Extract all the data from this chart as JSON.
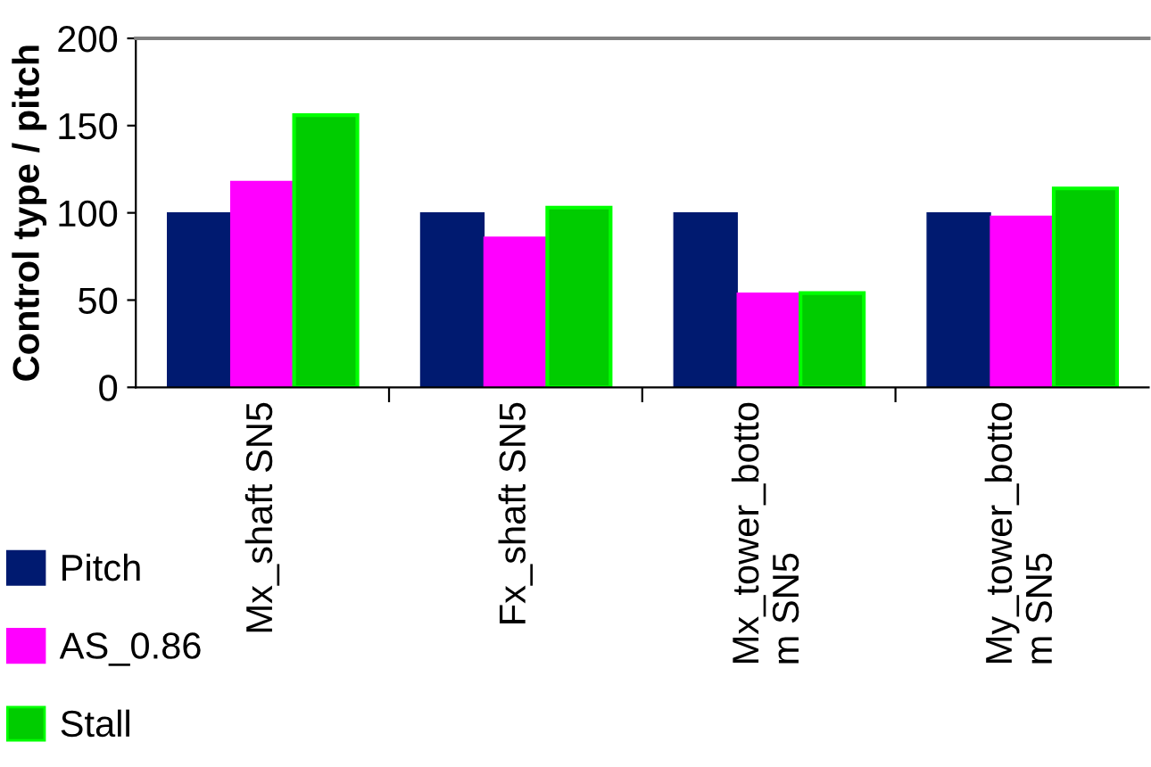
{
  "chart_data": {
    "type": "bar",
    "ylabel": "Control type / pitch",
    "categories": [
      "Mx_shaft SN5",
      "Fx_shaft SN5",
      "Mx_tower_bottom SN5",
      "My_tower_bottom SN5"
    ],
    "series": [
      {
        "name": "Pitch",
        "color": "#001a70",
        "values": [
          100,
          100,
          100,
          100
        ]
      },
      {
        "name": "AS_0.86",
        "color": "#ff00ff",
        "values": [
          118,
          86,
          54,
          98
        ]
      },
      {
        "name": "Stall",
        "color": "#00cc00",
        "values": [
          156,
          103,
          54,
          114
        ]
      }
    ],
    "ylim": [
      0,
      200
    ],
    "yticks": [
      0,
      50,
      100,
      150,
      200
    ],
    "grid": false,
    "legend": "bottom left"
  }
}
